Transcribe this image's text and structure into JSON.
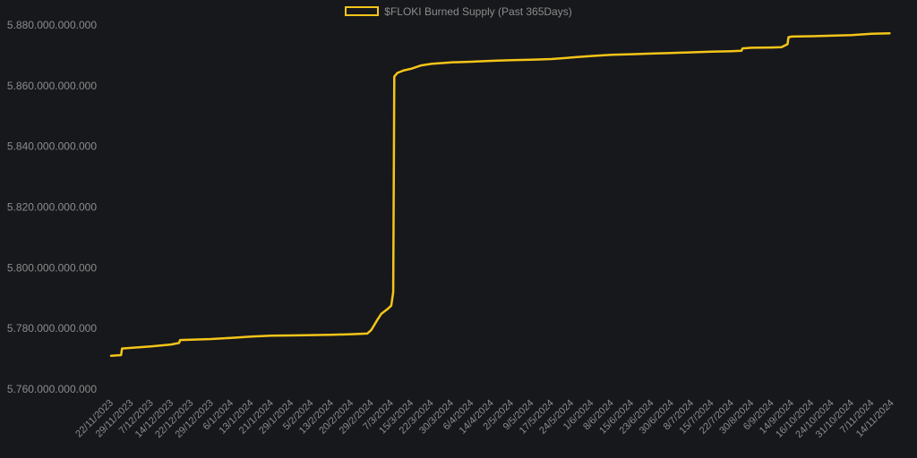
{
  "colors": {
    "background": "#17181c",
    "series": "#f5c518",
    "text": "#8c8c8c"
  },
  "chart_data": {
    "type": "line",
    "title": "",
    "xlabel": "",
    "ylabel": "",
    "ylim": [
      5760000000000,
      5880000000000
    ],
    "yticks": [
      5760000000000,
      5780000000000,
      5800000000000,
      5820000000000,
      5840000000000,
      5860000000000,
      5880000000000
    ],
    "ytick_labels": [
      "5.760.000.000.000",
      "5.780.000.000.000",
      "5.800.000.000.000",
      "5.820.000.000.000",
      "5.840.000.000.000",
      "5.860.000.000.000",
      "5.880.000.000.000"
    ],
    "xtick_labels": [
      "22/11/2023",
      "29/11/2023",
      "7/12/2023",
      "14/12/2023",
      "22/12/2023",
      "29/12/2023",
      "6/1/2024",
      "13/1/2024",
      "21/1/2024",
      "29/1/2024",
      "5/2/2024",
      "13/2/2024",
      "20/2/2024",
      "29/2/2024",
      "7/3/2024",
      "15/3/2024",
      "22/3/2024",
      "30/3/2024",
      "6/4/2024",
      "14/4/2024",
      "2/5/2024",
      "9/5/2024",
      "17/5/2024",
      "24/5/2024",
      "1/6/2024",
      "8/6/2024",
      "15/6/2024",
      "23/6/2024",
      "30/6/2024",
      "8/7/2024",
      "15/7/2024",
      "22/7/2024",
      "30/8/2024",
      "6/9/2024",
      "14/9/2024",
      "16/10/2024",
      "24/10/2024",
      "31/10/2024",
      "7/11/2024",
      "14/11/2024"
    ],
    "grid": false,
    "legend_position": "top-center",
    "series": [
      {
        "name": "$FLOKI Burned Supply (Past 365Days)",
        "x": [
          0,
          0.5,
          0.55,
          1,
          2,
          3,
          3.4,
          3.45,
          4,
          5,
          6,
          7,
          8,
          9,
          10,
          11,
          12,
          12.8,
          13,
          13.3,
          13.5,
          13.8,
          14,
          14.1,
          14.15,
          14.3,
          14.6,
          15,
          15.5,
          16,
          17,
          18,
          19,
          20,
          21,
          22,
          23,
          24,
          25,
          26,
          27,
          28,
          29,
          30,
          31,
          31.5,
          31.55,
          32,
          33,
          33.5,
          33.8,
          33.85,
          34,
          35,
          36,
          37,
          38,
          38.9
        ],
        "values": [
          5771000000000,
          5771200000000,
          5773400000000,
          5773600000000,
          5774100000000,
          5774700000000,
          5775200000000,
          5776200000000,
          5776300000000,
          5776500000000,
          5776900000000,
          5777300000000,
          5777600000000,
          5777700000000,
          5777800000000,
          5777900000000,
          5778100000000,
          5778300000000,
          5779500000000,
          5782800000000,
          5784800000000,
          5786300000000,
          5787500000000,
          5792000000000,
          5863000000000,
          5864200000000,
          5865000000000,
          5865600000000,
          5866700000000,
          5867200000000,
          5867700000000,
          5867900000000,
          5868200000000,
          5868400000000,
          5868600000000,
          5868800000000,
          5869300000000,
          5869800000000,
          5870200000000,
          5870400000000,
          5870600000000,
          5870800000000,
          5871000000000,
          5871200000000,
          5871400000000,
          5871500000000,
          5872300000000,
          5872500000000,
          5872600000000,
          5872700000000,
          5873700000000,
          5876000000000,
          5876200000000,
          5876300000000,
          5876500000000,
          5876700000000,
          5877100000000,
          5877300000000
        ]
      }
    ]
  }
}
